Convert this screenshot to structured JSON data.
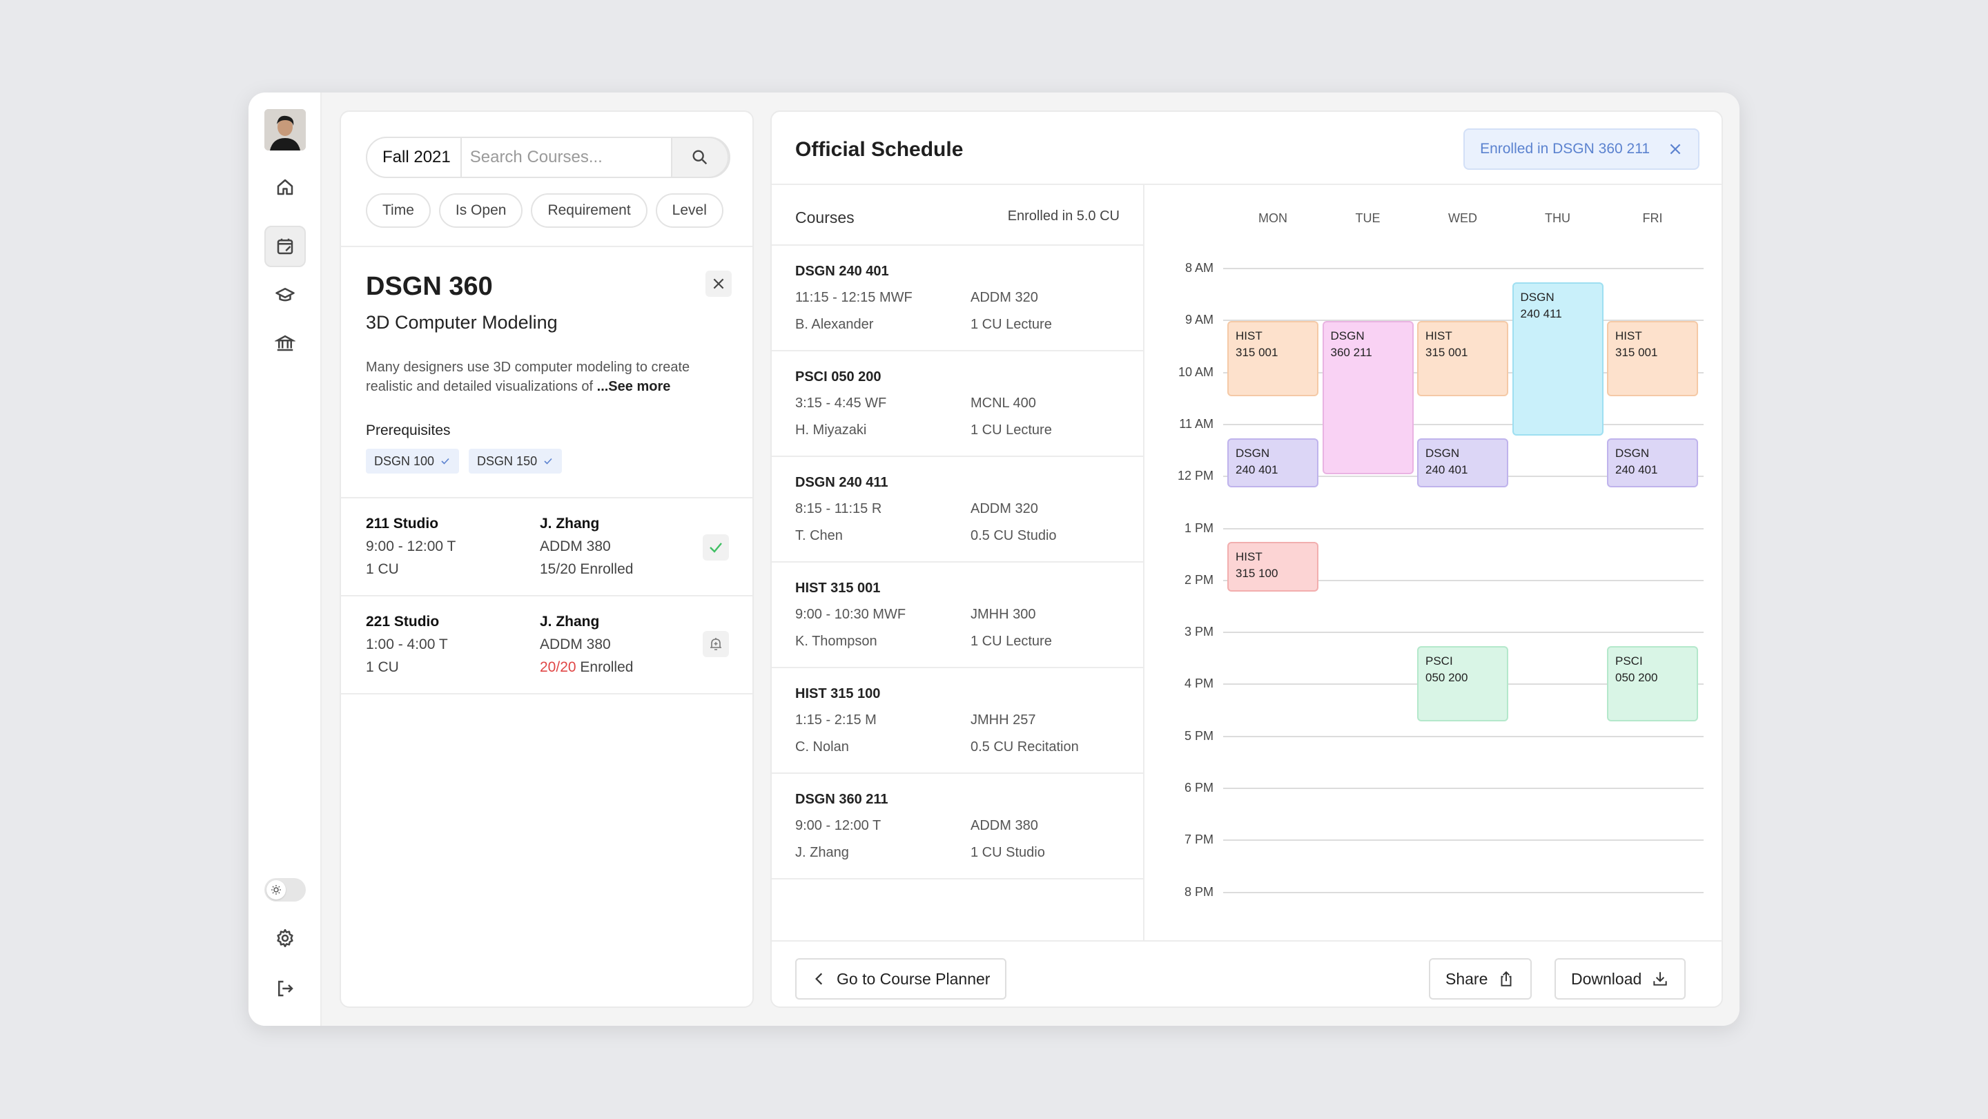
{
  "sidebar": {
    "items": [
      "home",
      "schedule",
      "graduation",
      "institution"
    ],
    "active": "schedule"
  },
  "search": {
    "term": "Fall 2021",
    "placeholder": "Search Courses..."
  },
  "filters": [
    "Time",
    "Is Open",
    "Requirement",
    "Level"
  ],
  "course": {
    "code": "DSGN 360",
    "name": "3D Computer Modeling",
    "description": "Many designers use 3D computer modeling to create realistic and detailed visualizations of ",
    "see_more": "...See more",
    "prereq_title": "Prerequisites",
    "prereqs": [
      "DSGN 100",
      "DSGN 150"
    ]
  },
  "sections": [
    {
      "name": "211 Studio",
      "time": "9:00 - 12:00 T",
      "cu": "1 CU",
      "instructor": "J. Zhang",
      "room": "ADDM 380",
      "enrolled": "15/20",
      "enrolled_suffix": " Enrolled",
      "full": false,
      "action": "check-icon"
    },
    {
      "name": "221 Studio",
      "time": "1:00 - 4:00 T",
      "cu": "1 CU",
      "instructor": "J. Zhang",
      "room": "ADDM 380",
      "enrolled": "20/20",
      "enrolled_suffix": " Enrolled",
      "full": true,
      "action": "bell-icon"
    }
  ],
  "schedule": {
    "title": "Official Schedule",
    "banner": "Enrolled in DSGN 360 211",
    "courses_label": "Courses",
    "enrolled_cu": "Enrolled in 5.0 CU",
    "courses": [
      {
        "title": "DSGN 240 401",
        "time": "11:15 - 12:15 MWF",
        "room": "ADDM 320",
        "instructor": "B. Alexander",
        "cu": "1 CU Lecture"
      },
      {
        "title": "PSCI 050 200",
        "time": "3:15 - 4:45 WF",
        "room": "MCNL 400",
        "instructor": "H. Miyazaki",
        "cu": "1 CU Lecture"
      },
      {
        "title": "DSGN 240 411",
        "time": "8:15 - 11:15 R",
        "room": "ADDM 320",
        "instructor": "T. Chen",
        "cu": "0.5 CU Studio"
      },
      {
        "title": "HIST 315 001",
        "time": "9:00 - 10:30 MWF",
        "room": "JMHH 300",
        "instructor": "K. Thompson",
        "cu": "1 CU Lecture"
      },
      {
        "title": "HIST 315 100",
        "time": "1:15 - 2:15 M",
        "room": "JMHH 257",
        "instructor": "C. Nolan",
        "cu": "0.5 CU Recitation"
      },
      {
        "title": "DSGN 360 211",
        "time": "9:00 - 12:00 T",
        "room": "ADDM 380",
        "instructor": "J. Zhang",
        "cu": "1 CU Studio"
      }
    ]
  },
  "calendar": {
    "days": [
      "MON",
      "TUE",
      "WED",
      "THU",
      "FRI"
    ],
    "times": [
      "8 AM",
      "9 AM",
      "10 AM",
      "11 AM",
      "12 PM",
      "1 PM",
      "2 PM",
      "3 PM",
      "4 PM",
      "5 PM",
      "6 PM",
      "7 PM",
      "8 PM"
    ],
    "events": [
      {
        "day": 0,
        "start": 9.0,
        "end": 10.5,
        "l1": "HIST",
        "l2": "315 001",
        "bg": "#fde1cc",
        "border": "#f5c9a6"
      },
      {
        "day": 2,
        "start": 9.0,
        "end": 10.5,
        "l1": "HIST",
        "l2": "315 001",
        "bg": "#fde1cc",
        "border": "#f5c9a6"
      },
      {
        "day": 4,
        "start": 9.0,
        "end": 10.5,
        "l1": "HIST",
        "l2": "315 001",
        "bg": "#fde1cc",
        "border": "#f5c9a6"
      },
      {
        "day": 1,
        "start": 9.0,
        "end": 12.0,
        "l1": "DSGN",
        "l2": "360 211",
        "bg": "#f9d2f4",
        "border": "#e9b3e2"
      },
      {
        "day": 3,
        "start": 8.25,
        "end": 11.25,
        "l1": "DSGN",
        "l2": "240 411",
        "bg": "#c9f0fa",
        "border": "#9edff1"
      },
      {
        "day": 0,
        "start": 11.25,
        "end": 12.25,
        "l1": "DSGN",
        "l2": "240 401",
        "bg": "#dcd6f6",
        "border": "#bfb3ec"
      },
      {
        "day": 2,
        "start": 11.25,
        "end": 12.25,
        "l1": "DSGN",
        "l2": "240 401",
        "bg": "#dcd6f6",
        "border": "#bfb3ec"
      },
      {
        "day": 4,
        "start": 11.25,
        "end": 12.25,
        "l1": "DSGN",
        "l2": "240 401",
        "bg": "#dcd6f6",
        "border": "#bfb3ec"
      },
      {
        "day": 0,
        "start": 13.25,
        "end": 14.25,
        "l1": "HIST",
        "l2": "315 100",
        "bg": "#fcd4d4",
        "border": "#f2aeae"
      },
      {
        "day": 2,
        "start": 15.25,
        "end": 16.75,
        "l1": "PSCI",
        "l2": "050 200",
        "bg": "#d9f5e6",
        "border": "#b4e8cb"
      },
      {
        "day": 4,
        "start": 15.25,
        "end": 16.75,
        "l1": "PSCI",
        "l2": "050 200",
        "bg": "#d9f5e6",
        "border": "#b4e8cb"
      }
    ]
  },
  "footer": {
    "back": "Go to Course Planner",
    "share": "Share",
    "download": "Download"
  }
}
